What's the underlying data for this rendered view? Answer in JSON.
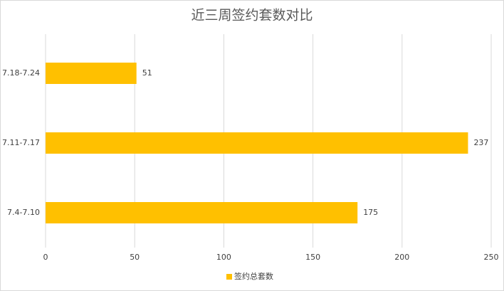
{
  "chart_data": {
    "type": "bar",
    "orientation": "horizontal",
    "title": "近三周签约套数对比",
    "categories": [
      "7.18-7.24",
      "7.11-7.17",
      "7.4-7.10"
    ],
    "series": [
      {
        "name": "签约总套数",
        "color": "#ffc000",
        "values": [
          51,
          237,
          175
        ]
      }
    ],
    "xlim": [
      0,
      250
    ],
    "xticks": [
      0,
      50,
      100,
      150,
      200,
      250
    ],
    "grid": true,
    "legend": "bottom"
  }
}
